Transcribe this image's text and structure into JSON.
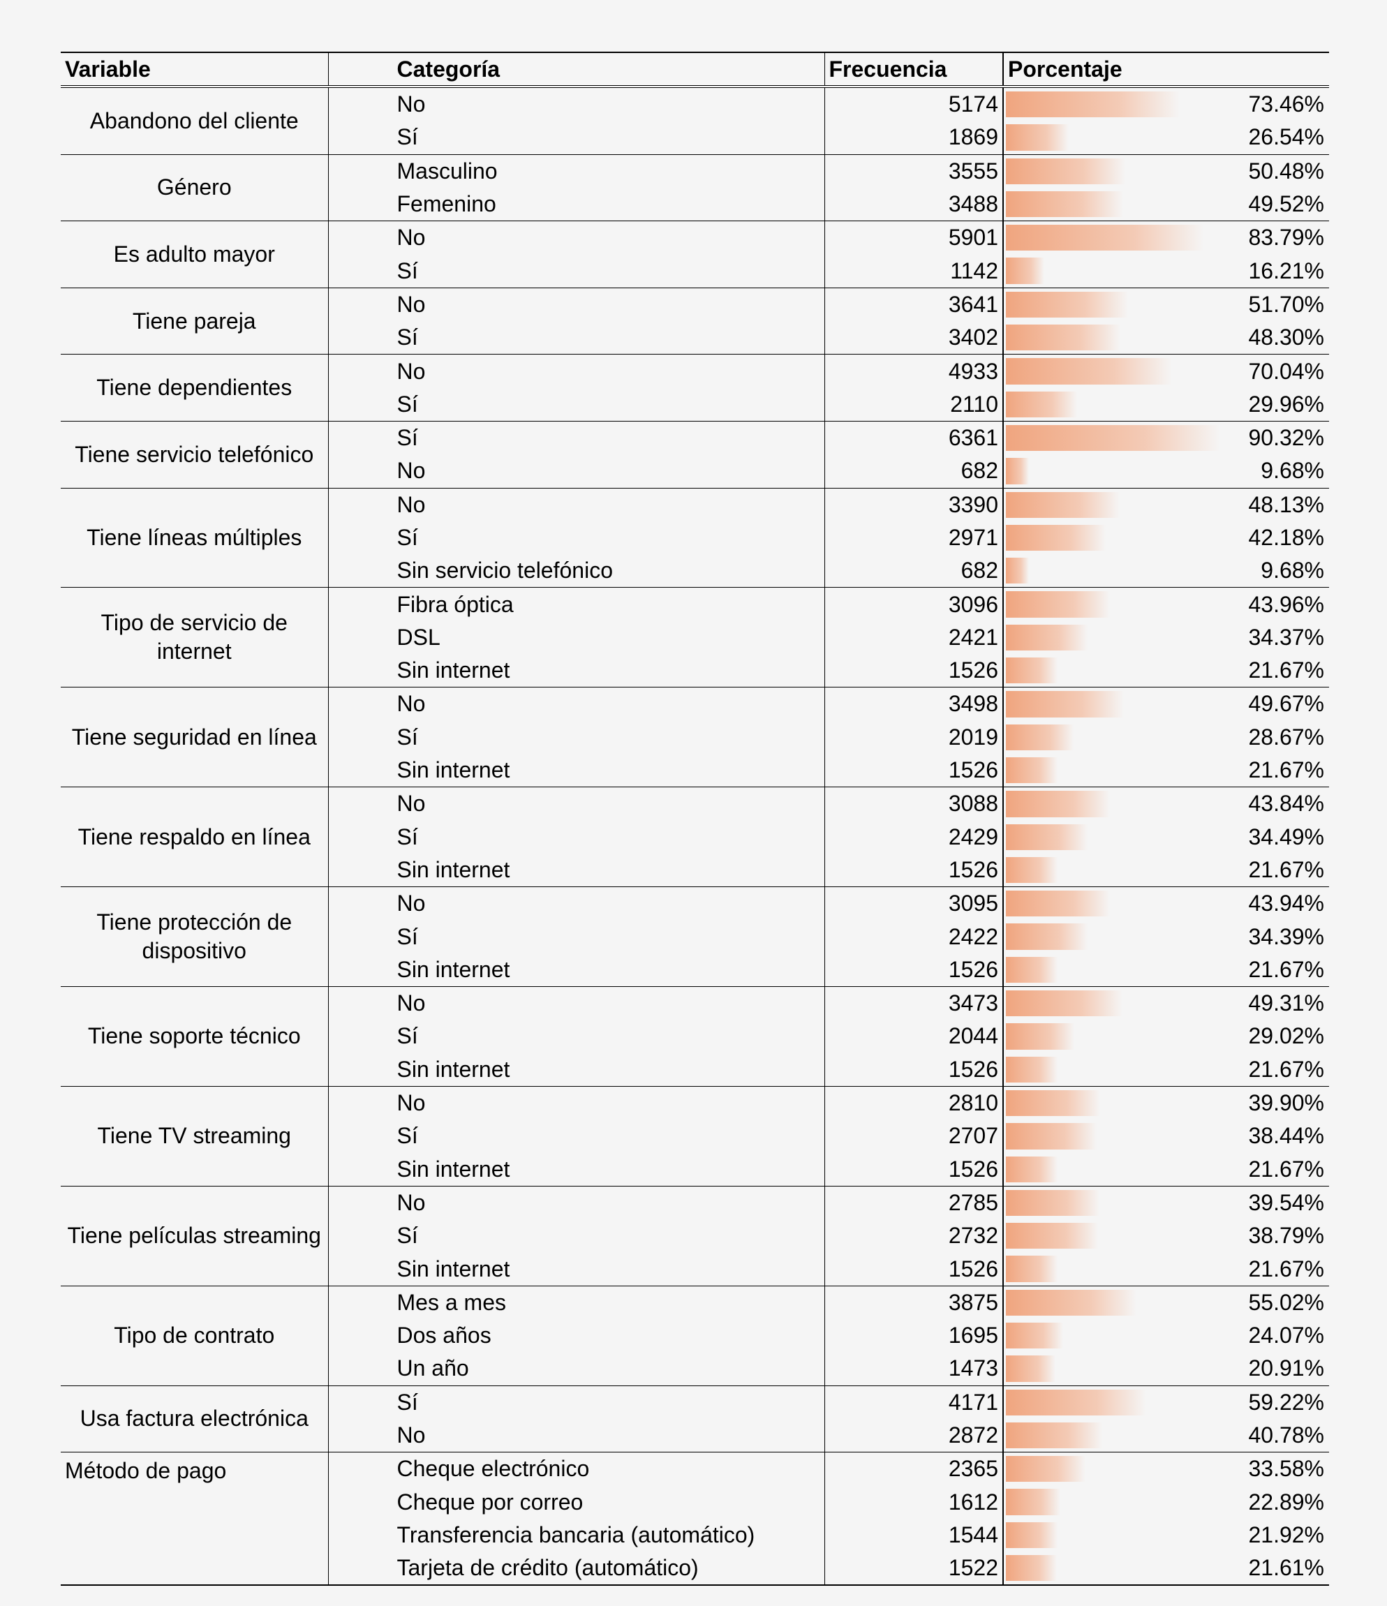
{
  "table": {
    "headers": {
      "variable": "Variable",
      "category": "Categoría",
      "frequency": "Frecuencia",
      "percent": "Porcentaje"
    },
    "groups": [
      {
        "variable": "Abandono del cliente",
        "rows": [
          {
            "category": "No",
            "frequency": "5174",
            "percent": "73.46%",
            "percent_value": 73.46
          },
          {
            "category": "Sí",
            "frequency": "1869",
            "percent": "26.54%",
            "percent_value": 26.54
          }
        ]
      },
      {
        "variable": "Género",
        "rows": [
          {
            "category": "Masculino",
            "frequency": "3555",
            "percent": "50.48%",
            "percent_value": 50.48
          },
          {
            "category": "Femenino",
            "frequency": "3488",
            "percent": "49.52%",
            "percent_value": 49.52
          }
        ]
      },
      {
        "variable": "Es adulto mayor",
        "rows": [
          {
            "category": "No",
            "frequency": "5901",
            "percent": "83.79%",
            "percent_value": 83.79
          },
          {
            "category": "Sí",
            "frequency": "1142",
            "percent": "16.21%",
            "percent_value": 16.21
          }
        ]
      },
      {
        "variable": "Tiene pareja",
        "rows": [
          {
            "category": "No",
            "frequency": "3641",
            "percent": "51.70%",
            "percent_value": 51.7
          },
          {
            "category": "Sí",
            "frequency": "3402",
            "percent": "48.30%",
            "percent_value": 48.3
          }
        ]
      },
      {
        "variable": "Tiene dependientes",
        "rows": [
          {
            "category": "No",
            "frequency": "4933",
            "percent": "70.04%",
            "percent_value": 70.04
          },
          {
            "category": "Sí",
            "frequency": "2110",
            "percent": "29.96%",
            "percent_value": 29.96
          }
        ]
      },
      {
        "variable": "Tiene servicio telefónico",
        "rows": [
          {
            "category": "Sí",
            "frequency": "6361",
            "percent": "90.32%",
            "percent_value": 90.32
          },
          {
            "category": "No",
            "frequency": "682",
            "percent": "9.68%",
            "percent_value": 9.68
          }
        ]
      },
      {
        "variable": "Tiene líneas múltiples",
        "rows": [
          {
            "category": "No",
            "frequency": "3390",
            "percent": "48.13%",
            "percent_value": 48.13
          },
          {
            "category": "Sí",
            "frequency": "2971",
            "percent": "42.18%",
            "percent_value": 42.18
          },
          {
            "category": "Sin servicio telefónico",
            "frequency": "682",
            "percent": "9.68%",
            "percent_value": 9.68
          }
        ]
      },
      {
        "variable": "Tipo de servicio de internet",
        "rows": [
          {
            "category": "Fibra óptica",
            "frequency": "3096",
            "percent": "43.96%",
            "percent_value": 43.96
          },
          {
            "category": "DSL",
            "frequency": "2421",
            "percent": "34.37%",
            "percent_value": 34.37
          },
          {
            "category": "Sin internet",
            "frequency": "1526",
            "percent": "21.67%",
            "percent_value": 21.67
          }
        ]
      },
      {
        "variable": "Tiene seguridad en línea",
        "rows": [
          {
            "category": "No",
            "frequency": "3498",
            "percent": "49.67%",
            "percent_value": 49.67
          },
          {
            "category": "Sí",
            "frequency": "2019",
            "percent": "28.67%",
            "percent_value": 28.67
          },
          {
            "category": "Sin internet",
            "frequency": "1526",
            "percent": "21.67%",
            "percent_value": 21.67
          }
        ]
      },
      {
        "variable": "Tiene respaldo en línea",
        "rows": [
          {
            "category": "No",
            "frequency": "3088",
            "percent": "43.84%",
            "percent_value": 43.84
          },
          {
            "category": "Sí",
            "frequency": "2429",
            "percent": "34.49%",
            "percent_value": 34.49
          },
          {
            "category": "Sin internet",
            "frequency": "1526",
            "percent": "21.67%",
            "percent_value": 21.67
          }
        ]
      },
      {
        "variable": "Tiene protección de dispositivo",
        "rows": [
          {
            "category": "No",
            "frequency": "3095",
            "percent": "43.94%",
            "percent_value": 43.94
          },
          {
            "category": "Sí",
            "frequency": "2422",
            "percent": "34.39%",
            "percent_value": 34.39
          },
          {
            "category": "Sin internet",
            "frequency": "1526",
            "percent": "21.67%",
            "percent_value": 21.67
          }
        ]
      },
      {
        "variable": "Tiene soporte técnico",
        "rows": [
          {
            "category": "No",
            "frequency": "3473",
            "percent": "49.31%",
            "percent_value": 49.31
          },
          {
            "category": "Sí",
            "frequency": "2044",
            "percent": "29.02%",
            "percent_value": 29.02
          },
          {
            "category": "Sin internet",
            "frequency": "1526",
            "percent": "21.67%",
            "percent_value": 21.67
          }
        ]
      },
      {
        "variable": "Tiene TV streaming",
        "rows": [
          {
            "category": "No",
            "frequency": "2810",
            "percent": "39.90%",
            "percent_value": 39.9
          },
          {
            "category": "Sí",
            "frequency": "2707",
            "percent": "38.44%",
            "percent_value": 38.44
          },
          {
            "category": "Sin internet",
            "frequency": "1526",
            "percent": "21.67%",
            "percent_value": 21.67
          }
        ]
      },
      {
        "variable": "Tiene películas streaming",
        "rows": [
          {
            "category": "No",
            "frequency": "2785",
            "percent": "39.54%",
            "percent_value": 39.54
          },
          {
            "category": "Sí",
            "frequency": "2732",
            "percent": "38.79%",
            "percent_value": 38.79
          },
          {
            "category": "Sin internet",
            "frequency": "1526",
            "percent": "21.67%",
            "percent_value": 21.67
          }
        ]
      },
      {
        "variable": "Tipo de contrato",
        "rows": [
          {
            "category": "Mes a mes",
            "frequency": "3875",
            "percent": "55.02%",
            "percent_value": 55.02
          },
          {
            "category": "Dos años",
            "frequency": "1695",
            "percent": "24.07%",
            "percent_value": 24.07
          },
          {
            "category": "Un año",
            "frequency": "1473",
            "percent": "20.91%",
            "percent_value": 20.91
          }
        ]
      },
      {
        "variable": "Usa factura electrónica",
        "rows": [
          {
            "category": "Sí",
            "frequency": "4171",
            "percent": "59.22%",
            "percent_value": 59.22
          },
          {
            "category": "No",
            "frequency": "2872",
            "percent": "40.78%",
            "percent_value": 40.78
          }
        ]
      },
      {
        "variable": "Método de pago",
        "align": "left",
        "rows": [
          {
            "category": "Cheque electrónico",
            "frequency": "2365",
            "percent": "33.58%",
            "percent_value": 33.58
          },
          {
            "category": "Cheque por correo",
            "frequency": "1612",
            "percent": "22.89%",
            "percent_value": 22.89
          },
          {
            "category": "Transferencia bancaria (automático)",
            "frequency": "1544",
            "percent": "21.92%",
            "percent_value": 21.92
          },
          {
            "category": "Tarjeta de crédito (automático)",
            "frequency": "1522",
            "percent": "21.61%",
            "percent_value": 21.61
          }
        ]
      }
    ],
    "bar_scale_max": 100,
    "bar_color": "#f0a57f"
  }
}
